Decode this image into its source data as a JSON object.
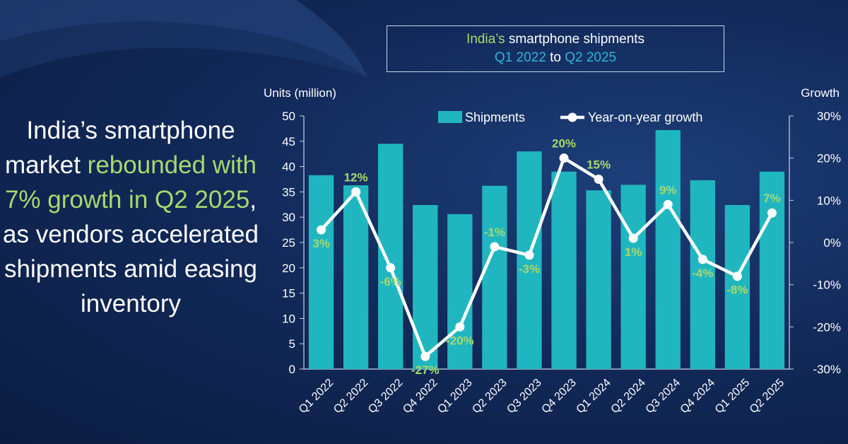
{
  "headline": {
    "part1": "India’s smartphone market ",
    "highlight": "rebounded with 7% growth in Q2 2025",
    "part2": ", as vendors accelerated shipments amid easing inventory"
  },
  "title": {
    "line1_prefix": "India’s",
    "line1_rest": " smartphone shipments",
    "line2_from": "Q1 2022",
    "line2_to": " to ",
    "line2_end": "Q2 2025"
  },
  "colors": {
    "bar": "#20b6bf",
    "line": "#ffffff",
    "label": "#a9d86e",
    "accent_cyan": "#31b5d6",
    "axis_text": "#ffffff"
  },
  "chart_data": {
    "type": "bar",
    "categories": [
      "Q1 2022",
      "Q2 2022",
      "Q3 2022",
      "Q4 2022",
      "Q1 2023",
      "Q2 2023",
      "Q3 2023",
      "Q4 2023",
      "Q1 2024",
      "Q2 2024",
      "Q3 2024",
      "Q4 2024",
      "Q1 2025",
      "Q2 2025"
    ],
    "series": [
      {
        "name": "Shipments",
        "type": "bar",
        "axis": "left",
        "values": [
          38.3,
          36.3,
          44.5,
          32.4,
          30.6,
          36.2,
          43.0,
          39.0,
          35.3,
          36.4,
          47.2,
          37.3,
          32.4,
          39.0
        ]
      },
      {
        "name": "Year-on-year growth",
        "type": "line",
        "axis": "right",
        "values": [
          3,
          12,
          -6,
          -27,
          -20,
          -1,
          -3,
          20,
          15,
          1,
          9,
          -4,
          -8,
          7
        ],
        "labels": [
          "3%",
          "12%",
          "-6%",
          "-27%",
          "-20%",
          "-1%",
          "-3%",
          "20%",
          "15%",
          "1%",
          "9%",
          "-4%",
          "-8%",
          "7%"
        ]
      }
    ],
    "y_left": {
      "label": "Units (million)",
      "range": [
        0,
        50
      ],
      "ticks": [
        "0",
        "5",
        "10",
        "15",
        "20",
        "25",
        "30",
        "35",
        "40",
        "45",
        "50"
      ]
    },
    "y_right": {
      "label": "Growth",
      "range": [
        -30,
        30
      ],
      "ticks": [
        "-30%",
        "-20%",
        "-10%",
        "0%",
        "10%",
        "20%",
        "30%"
      ]
    },
    "legend": {
      "position": "top",
      "items": [
        "Shipments",
        "Year-on-year growth"
      ]
    },
    "grid": false
  }
}
